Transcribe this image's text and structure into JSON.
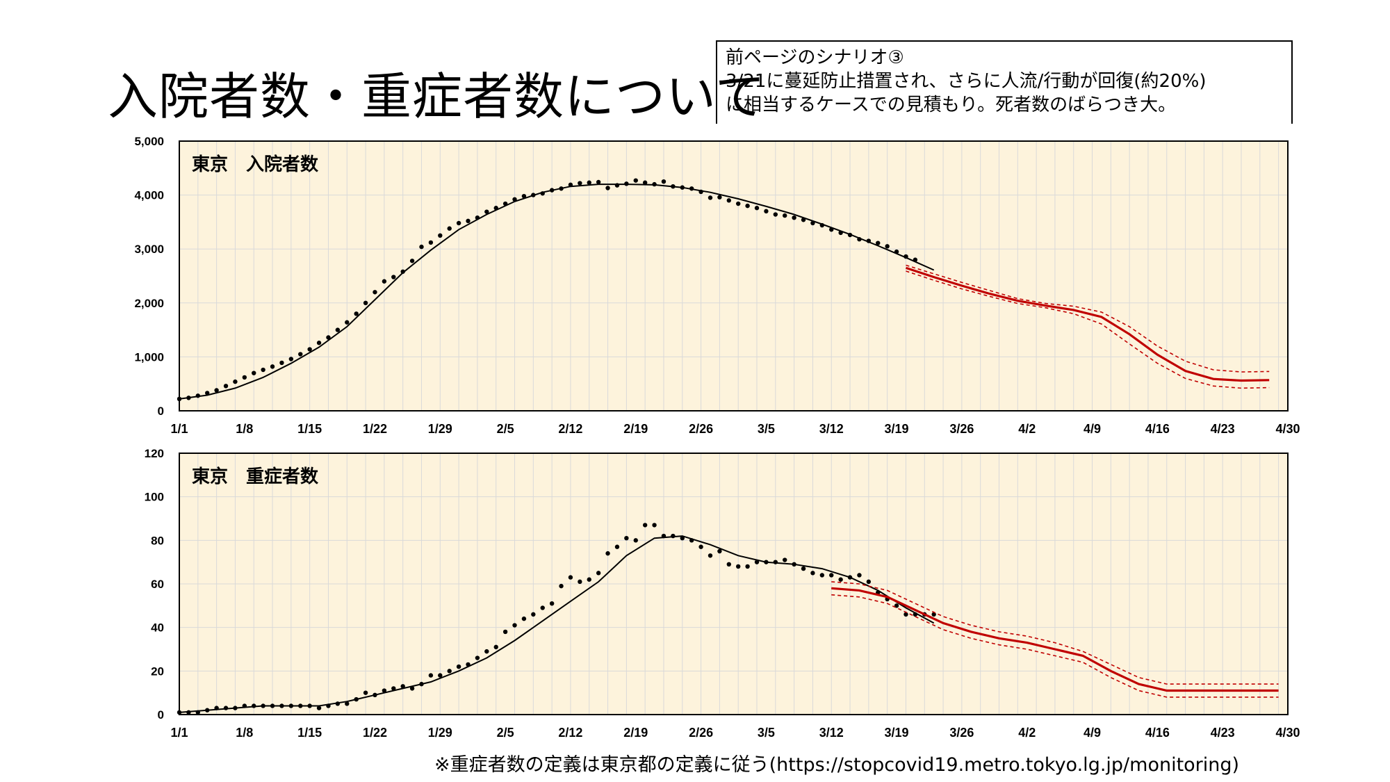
{
  "page": {
    "title": "入院者数・重症者数について",
    "note_lines": [
      "前ページのシナリオ③",
      " 3/21に蔓延防止措置され、さらに人流/行動が回復(約20%)",
      "に相当するケースでの見積もり。死者数のばらつき大。"
    ],
    "footnote": "※重症者数の定義は東京都の定義に従う(https://stopcovid19.metro.tokyo.lg.jp/monitoring)"
  },
  "colors": {
    "plot_bg": "#fdf3dc",
    "grid": "#d9d9d9",
    "observed": "#000000",
    "projection": "#c00000"
  },
  "chart_data": [
    {
      "type": "line",
      "title": "東京　入院者数",
      "x_tick_labels": [
        "1/1",
        "1/8",
        "1/15",
        "1/22",
        "1/29",
        "2/5",
        "2/12",
        "2/19",
        "2/26",
        "3/5",
        "3/12",
        "3/19",
        "3/26",
        "4/2",
        "4/9",
        "4/16",
        "4/23",
        "4/30"
      ],
      "x_day_range": [
        0,
        119
      ],
      "ylim": [
        0,
        5000
      ],
      "y_ticks": [
        0,
        1000,
        2000,
        3000,
        4000,
        5000
      ],
      "y_tick_labels": [
        "0",
        "1,000",
        "2,000",
        "3,000",
        "4,000",
        "5,000"
      ],
      "grid": true,
      "series": [
        {
          "kind": "points",
          "x": [
            0,
            1,
            2,
            3,
            4,
            5,
            6,
            7,
            8,
            9,
            10,
            11,
            12,
            13,
            14,
            15,
            16,
            17,
            18,
            19,
            20,
            21,
            22,
            23,
            24,
            25,
            26,
            27,
            28,
            29,
            30,
            31,
            32,
            33,
            34,
            35,
            36,
            37,
            38,
            39,
            40,
            41,
            42,
            43,
            44,
            45,
            46,
            47,
            48,
            49,
            50,
            51,
            52,
            53,
            54,
            55,
            56,
            57,
            58,
            59,
            60,
            61,
            62,
            63,
            64,
            65,
            66,
            67,
            68,
            69,
            70,
            71,
            72,
            73,
            74,
            75,
            76,
            77,
            78,
            79
          ],
          "y": [
            220,
            240,
            280,
            330,
            380,
            460,
            540,
            620,
            700,
            760,
            820,
            890,
            960,
            1050,
            1140,
            1260,
            1360,
            1500,
            1640,
            1800,
            2000,
            2200,
            2400,
            2480,
            2580,
            2780,
            3040,
            3120,
            3250,
            3380,
            3480,
            3520,
            3580,
            3690,
            3760,
            3840,
            3920,
            3980,
            4000,
            4030,
            4090,
            4120,
            4190,
            4220,
            4230,
            4240,
            4130,
            4180,
            4210,
            4270,
            4230,
            4200,
            4250,
            4160,
            4140,
            4120,
            4060,
            3950,
            3960,
            3900,
            3840,
            3800,
            3760,
            3700,
            3640,
            3620,
            3580,
            3540,
            3480,
            3440,
            3360,
            3300,
            3260,
            3180,
            3150,
            3110,
            3050,
            2950,
            2860,
            2800
          ]
        },
        {
          "kind": "fit",
          "x": [
            0,
            3,
            6,
            9,
            12,
            15,
            18,
            21,
            24,
            27,
            30,
            33,
            36,
            39,
            42,
            45,
            48,
            51,
            54,
            57,
            60,
            63,
            66,
            69,
            72,
            75,
            78,
            81
          ],
          "y": [
            220,
            290,
            420,
            620,
            880,
            1180,
            1560,
            2060,
            2560,
            2980,
            3360,
            3640,
            3880,
            4050,
            4160,
            4200,
            4200,
            4190,
            4140,
            4050,
            3930,
            3790,
            3640,
            3460,
            3270,
            3060,
            2840,
            2610
          ]
        },
        {
          "kind": "projection",
          "x": [
            78,
            81,
            84,
            87,
            90,
            93,
            96,
            99,
            102,
            105,
            108,
            111,
            114,
            117
          ],
          "y": [
            2650,
            2480,
            2320,
            2170,
            2040,
            1950,
            1870,
            1740,
            1420,
            1040,
            740,
            590,
            560,
            570
          ]
        },
        {
          "kind": "band_upper",
          "x": [
            78,
            81,
            84,
            87,
            90,
            93,
            96,
            99,
            102,
            105,
            108,
            111,
            114,
            117
          ],
          "y": [
            2700,
            2540,
            2380,
            2230,
            2080,
            1990,
            1940,
            1830,
            1560,
            1200,
            920,
            760,
            720,
            730
          ]
        },
        {
          "kind": "band_lower",
          "x": [
            78,
            81,
            84,
            87,
            90,
            93,
            96,
            99,
            102,
            105,
            108,
            111,
            114,
            117
          ],
          "y": [
            2590,
            2420,
            2260,
            2120,
            1990,
            1910,
            1800,
            1610,
            1240,
            880,
            600,
            460,
            420,
            430
          ]
        }
      ]
    },
    {
      "type": "line",
      "title": "東京　重症者数",
      "x_tick_labels": [
        "1/1",
        "1/8",
        "1/15",
        "1/22",
        "1/29",
        "2/5",
        "2/12",
        "2/19",
        "2/26",
        "3/5",
        "3/12",
        "3/19",
        "3/26",
        "4/2",
        "4/9",
        "4/16",
        "4/23",
        "4/30"
      ],
      "x_day_range": [
        0,
        119
      ],
      "ylim": [
        0,
        120
      ],
      "y_ticks": [
        0,
        20,
        40,
        60,
        80,
        100,
        120
      ],
      "y_tick_labels": [
        "0",
        "20",
        "40",
        "60",
        "80",
        "100",
        "120"
      ],
      "grid": true,
      "series": [
        {
          "kind": "points",
          "x": [
            0,
            1,
            2,
            3,
            4,
            5,
            6,
            7,
            8,
            9,
            10,
            11,
            12,
            13,
            14,
            15,
            16,
            17,
            18,
            19,
            20,
            21,
            22,
            23,
            24,
            25,
            26,
            27,
            28,
            29,
            30,
            31,
            32,
            33,
            34,
            35,
            36,
            37,
            38,
            39,
            40,
            41,
            42,
            43,
            44,
            45,
            46,
            47,
            48,
            49,
            50,
            51,
            52,
            53,
            54,
            55,
            56,
            57,
            58,
            59,
            60,
            61,
            62,
            63,
            64,
            65,
            66,
            67,
            68,
            69,
            70,
            71,
            72,
            73,
            74,
            75,
            76,
            77,
            78,
            79,
            80,
            81
          ],
          "y": [
            1,
            1,
            1,
            2,
            3,
            3,
            3,
            4,
            4,
            4,
            4,
            4,
            4,
            4,
            4,
            3,
            4,
            5,
            5,
            7,
            10,
            9,
            11,
            12,
            13,
            12,
            14,
            18,
            18,
            20,
            22,
            23,
            26,
            29,
            31,
            38,
            41,
            44,
            46,
            49,
            51,
            59,
            63,
            61,
            62,
            65,
            74,
            77,
            81,
            80,
            87,
            87,
            82,
            82,
            81,
            80,
            77,
            73,
            75,
            69,
            68,
            68,
            70,
            70,
            70,
            71,
            69,
            67,
            65,
            64,
            64,
            62,
            63,
            64,
            61,
            56,
            53,
            50,
            46,
            46,
            46,
            46
          ]
        },
        {
          "kind": "fit",
          "x": [
            0,
            3,
            6,
            9,
            12,
            15,
            18,
            21,
            24,
            27,
            30,
            33,
            36,
            39,
            42,
            45,
            48,
            51,
            54,
            57,
            60,
            63,
            66,
            69,
            72,
            75,
            78,
            81
          ],
          "y": [
            1,
            2,
            3,
            4,
            4,
            4,
            6,
            9,
            12,
            15,
            20,
            26,
            34,
            43,
            52,
            61,
            73,
            81,
            82,
            78,
            73,
            70,
            69,
            67,
            63,
            57,
            49,
            42
          ]
        },
        {
          "kind": "projection",
          "x": [
            70,
            73,
            76,
            79,
            82,
            85,
            88,
            91,
            94,
            97,
            100,
            103,
            106,
            109,
            112,
            115,
            118
          ],
          "y": [
            58,
            57,
            54,
            48,
            42,
            38,
            35,
            33,
            30,
            27,
            20,
            14,
            11,
            11,
            11,
            11,
            11
          ]
        },
        {
          "kind": "band_upper",
          "x": [
            70,
            73,
            76,
            79,
            82,
            85,
            88,
            91,
            94,
            97,
            100,
            103,
            106,
            109,
            112,
            115,
            118
          ],
          "y": [
            61,
            60,
            57,
            51,
            45,
            41,
            38,
            36,
            33,
            29,
            23,
            17,
            14,
            14,
            14,
            14,
            14
          ]
        },
        {
          "kind": "band_lower",
          "x": [
            70,
            73,
            76,
            79,
            82,
            85,
            88,
            91,
            94,
            97,
            100,
            103,
            106,
            109,
            112,
            115,
            118
          ],
          "y": [
            55,
            54,
            51,
            45,
            39,
            35,
            32,
            30,
            27,
            24,
            17,
            11,
            8,
            8,
            8,
            8,
            8
          ]
        }
      ]
    }
  ]
}
